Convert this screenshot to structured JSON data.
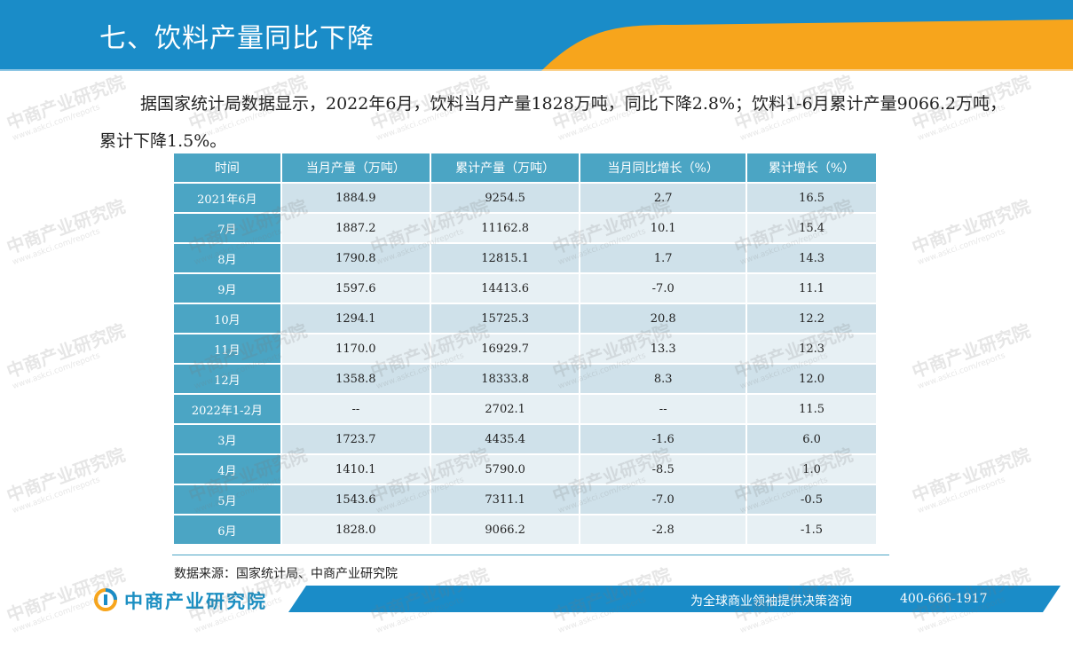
{
  "header": {
    "title": "七、饮料产量同比下降",
    "colors": {
      "blue": "#1a8cc8",
      "orange": "#f7a51c"
    }
  },
  "intro": {
    "text": "据国家统计局数据显示，2022年6月，饮料当月产量1828万吨，同比下降2.8%；饮料1-6月累计产量9066.2万吨，累计下降1.5%。"
  },
  "table": {
    "headers": [
      "时间",
      "当月产量（万吨）",
      "累计产量（万吨）",
      "当月同比增长（%）",
      "累计增长（%）"
    ],
    "rows": [
      [
        "2021年6月",
        "1884.9",
        "9254.5",
        "2.7",
        "16.5"
      ],
      [
        "7月",
        "1887.2",
        "11162.8",
        "10.1",
        "15.4"
      ],
      [
        "8月",
        "1790.8",
        "12815.1",
        "1.7",
        "14.3"
      ],
      [
        "9月",
        "1597.6",
        "14413.6",
        "-7.0",
        "11.1"
      ],
      [
        "10月",
        "1294.1",
        "15725.3",
        "20.8",
        "12.2"
      ],
      [
        "11月",
        "1170.0",
        "16929.7",
        "13.3",
        "12.3"
      ],
      [
        "12月",
        "1358.8",
        "18333.8",
        "8.3",
        "12.0"
      ],
      [
        "2022年1-2月",
        "--",
        "2702.1",
        "--",
        "11.5"
      ],
      [
        "3月",
        "1723.7",
        "4435.4",
        "-1.6",
        "6.0"
      ],
      [
        "4月",
        "1410.1",
        "5790.0",
        "-8.5",
        "1.0"
      ],
      [
        "5月",
        "1543.6",
        "7311.1",
        "-7.0",
        "-0.5"
      ],
      [
        "6月",
        "1828.0",
        "9066.2",
        "-2.8",
        "-1.5"
      ]
    ],
    "header_color": "#4ba5c4"
  },
  "source": "数据来源：国家统计局、中商产业研究院",
  "footer": {
    "logo_text": "中商产业研究院",
    "slogan": "为全球商业领袖提供决策咨询",
    "phone": "400-666-1917"
  },
  "watermark": {
    "cn": "中商产业研究院",
    "en": "www.askci.com/reports"
  }
}
